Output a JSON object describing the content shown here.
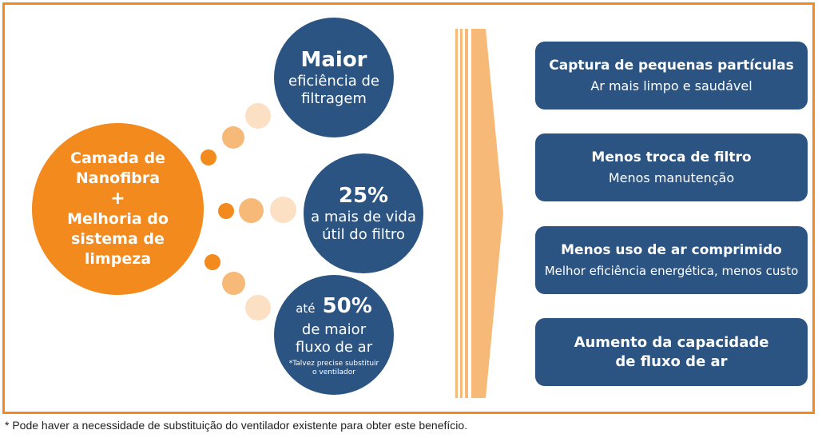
{
  "center": {
    "line1": "Camada de",
    "line2": "Nanofibra",
    "plus": "+",
    "line3": "Melhoria do",
    "line4": "sistema de",
    "line5": "limpeza"
  },
  "circles": [
    {
      "big": "Maior",
      "sub1": "eficiência de",
      "sub2": "filtragem"
    },
    {
      "big": "25%",
      "sub1": "a mais de vida",
      "sub2": "útil do filtro"
    },
    {
      "prefix": "até",
      "big": "50%",
      "sub1": "de maior",
      "sub2": "fluxo de ar",
      "note1": "*Talvez precise substituir",
      "note2": "o ventilador"
    }
  ],
  "benefits": [
    {
      "title": "Captura de pequenas partículas",
      "subtitle": "Ar mais limpo e saudável"
    },
    {
      "title": "Menos troca de filtro",
      "subtitle": "Menos manutenção"
    },
    {
      "title": "Menos uso de ar comprimido",
      "subtitle": "Melhor eficiência energética, menos custo"
    },
    {
      "title1": "Aumento da capacidade",
      "title2": "de fluxo de ar"
    }
  ],
  "footnote": "* Pode haver a necessidade de substituição do ventilador existente para obter este benefício.",
  "colors": {
    "orange": "#f28a1e",
    "blue": "#2b5482",
    "arrow": "#f6b978"
  }
}
